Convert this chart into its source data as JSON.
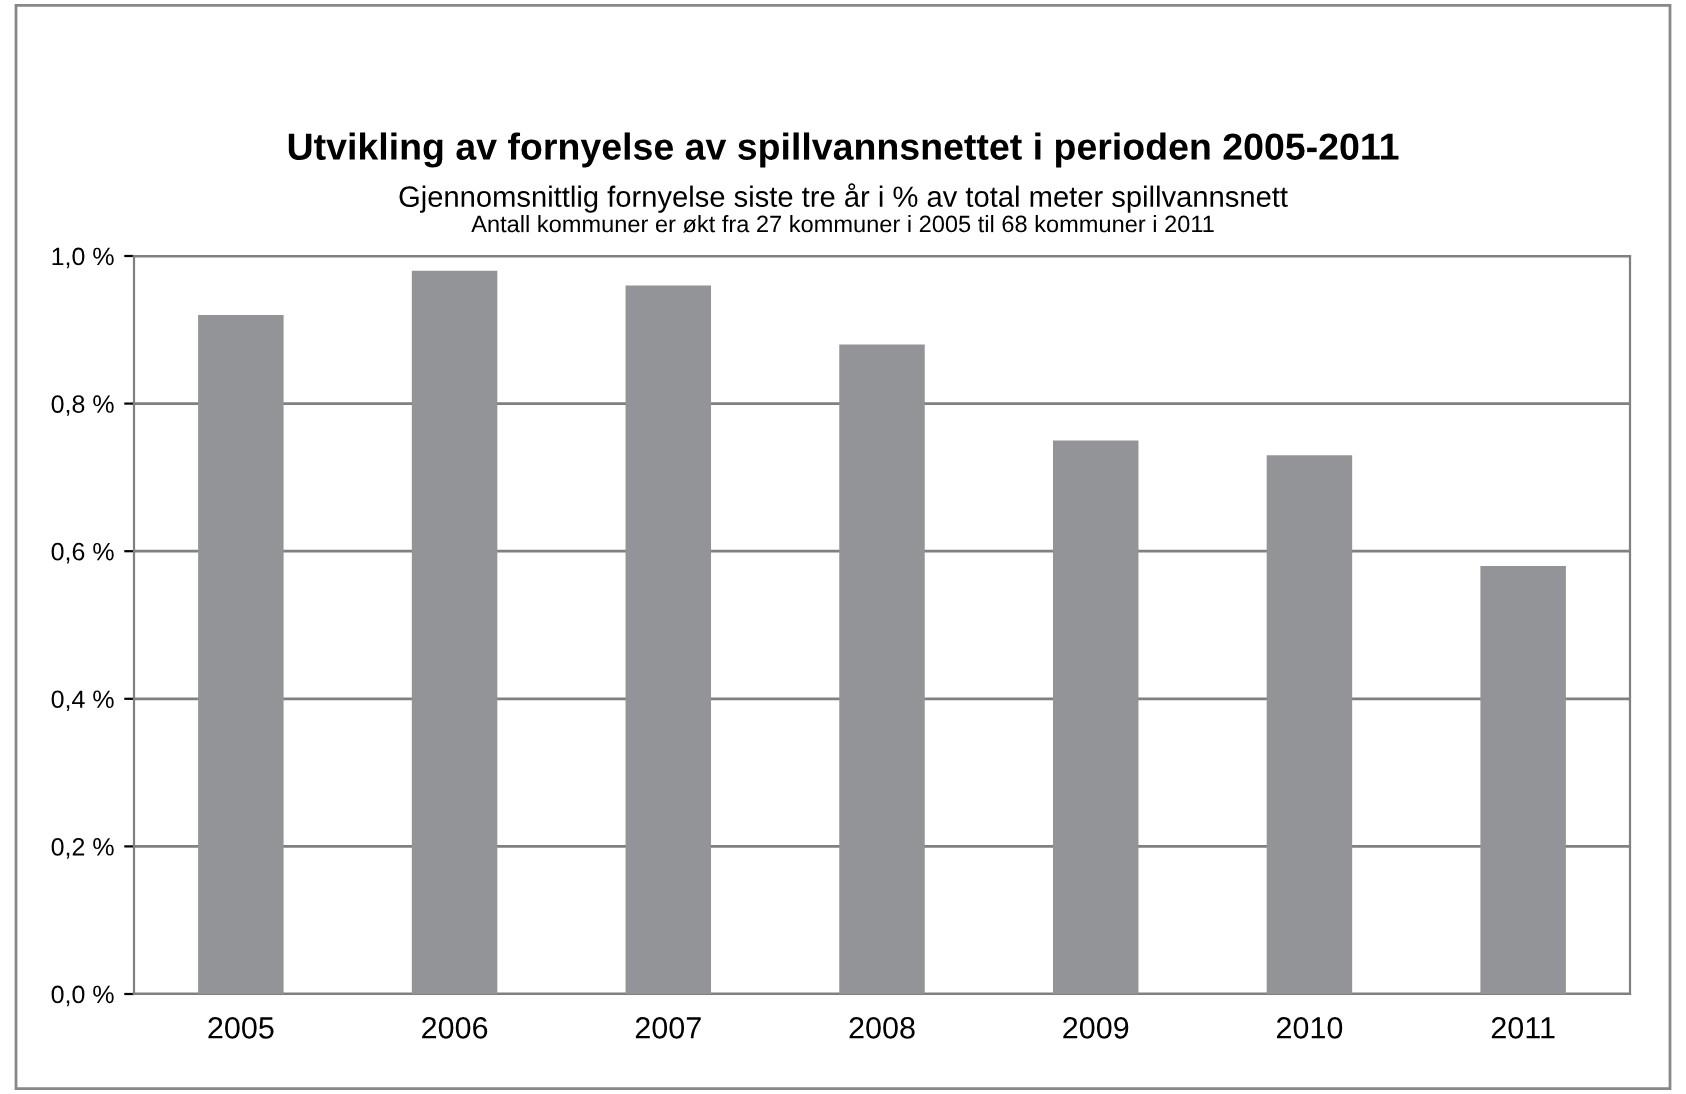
{
  "chart_data": {
    "type": "bar",
    "title": "Utvikling av fornyelse av spillvannsnettet i perioden 2005-2011",
    "subtitle": "Gjennomsnittlig fornyelse siste tre år i % av total meter spillvannsnett",
    "annotations": [
      "Antall kommuner er økt fra 27 kommuner i 2005 til 68 kommuner i 2011"
    ],
    "categories": [
      "2005",
      "2006",
      "2007",
      "2008",
      "2009",
      "2010",
      "2011"
    ],
    "values": [
      0.92,
      0.98,
      0.96,
      0.88,
      0.75,
      0.73,
      0.58
    ],
    "color": "#939497",
    "ylim": [
      0,
      1.0
    ],
    "yticks": [
      {
        "value": 0,
        "label": "0,0 %"
      },
      {
        "value": 0.2,
        "label": "0,2 %"
      },
      {
        "value": 0.4,
        "label": "0,4 %"
      },
      {
        "value": 0.6,
        "label": "0,6 %"
      },
      {
        "value": 0.8,
        "label": "0,8 %"
      },
      {
        "value": 1.0,
        "label": "1,0 %"
      }
    ],
    "grid": "y",
    "legend": false
  }
}
